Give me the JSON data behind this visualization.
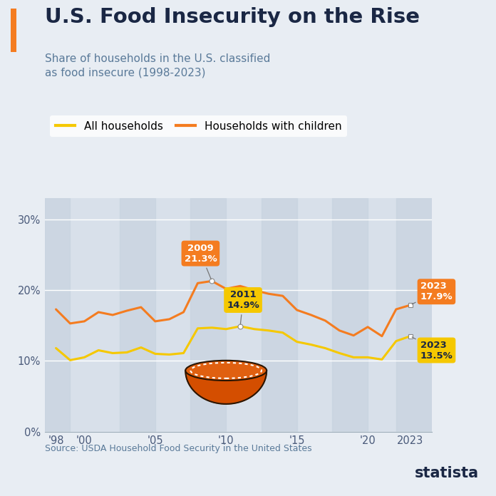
{
  "title": "U.S. Food Insecurity on the Rise",
  "subtitle": "Share of households in the U.S. classified\nas food insecure (1998-2023)",
  "source": "Source: USDA Household Food Security in the United States",
  "bg_color": "#e8edf3",
  "plot_bg_color": "#d8e0ea",
  "title_color": "#1a2744",
  "subtitle_color": "#5a7a99",
  "accent_bar_color": "#f47c20",
  "years": [
    1998,
    1999,
    2000,
    2001,
    2002,
    2003,
    2004,
    2005,
    2006,
    2007,
    2008,
    2009,
    2010,
    2011,
    2012,
    2013,
    2014,
    2015,
    2016,
    2017,
    2018,
    2019,
    2020,
    2021,
    2022,
    2023
  ],
  "all_households": [
    11.8,
    10.1,
    10.5,
    11.5,
    11.1,
    11.2,
    11.9,
    11.0,
    10.9,
    11.1,
    14.6,
    14.7,
    14.5,
    14.9,
    14.5,
    14.3,
    14.0,
    12.7,
    12.3,
    11.8,
    11.1,
    10.5,
    10.5,
    10.2,
    12.8,
    13.5
  ],
  "with_children": [
    17.3,
    15.3,
    15.6,
    16.9,
    16.5,
    17.1,
    17.6,
    15.6,
    15.9,
    16.9,
    21.0,
    21.3,
    20.2,
    20.6,
    20.0,
    19.5,
    19.2,
    17.2,
    16.5,
    15.7,
    14.3,
    13.6,
    14.8,
    13.5,
    17.3,
    17.9
  ],
  "all_color": "#f5c800",
  "children_color": "#f47c20",
  "xtick_labels": [
    "'98",
    "'00",
    "'05",
    "'10",
    "'15",
    "'20",
    "2023"
  ],
  "xtick_positions": [
    1998,
    2000,
    2005,
    2010,
    2015,
    2020,
    2023
  ],
  "ytick_labels": [
    "0%",
    "10%",
    "20%",
    "30%"
  ],
  "ytick_positions": [
    0,
    10,
    20,
    30
  ],
  "ylim": [
    0,
    33
  ],
  "xlim": [
    1997.2,
    2024.5
  ]
}
